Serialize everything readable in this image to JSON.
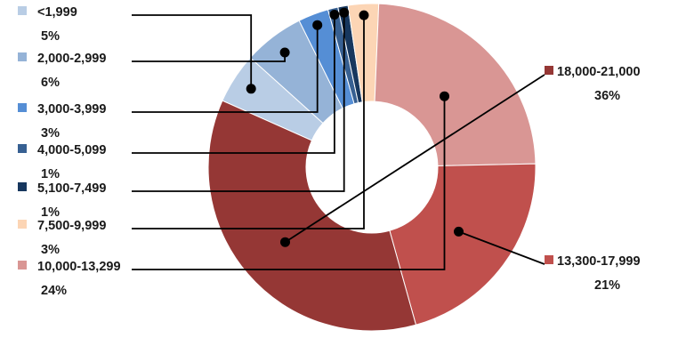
{
  "chart_data": {
    "type": "pie",
    "style": "donut",
    "legend": "left-and-right",
    "series": [
      {
        "name": "<1,999",
        "label": "<1,999",
        "value": 5,
        "value_label": "5%",
        "color": "#B9CDE5"
      },
      {
        "name": "2,000-2,999",
        "label": "2,000-2,999",
        "value": 6,
        "value_label": "6%",
        "color": "#95B3D7"
      },
      {
        "name": "3,000-3,999",
        "label": "3,000-3,999",
        "value": 3,
        "value_label": "3%",
        "color": "#558ED5"
      },
      {
        "name": "4,000-5,099",
        "label": "4,000-5,099",
        "value": 1,
        "value_label": "1%",
        "color": "#376092"
      },
      {
        "name": "5,100-7,499",
        "label": "5,100-7,499",
        "value": 1,
        "value_label": "1%",
        "color": "#17375E"
      },
      {
        "name": "7,500-9,999",
        "label": "7,500-9,999",
        "value": 3,
        "value_label": "3%",
        "color": "#FCD5B5"
      },
      {
        "name": "10,000-13,299",
        "label": "10,000-13,299",
        "value": 24,
        "value_label": "24%",
        "color": "#D99694"
      },
      {
        "name": "13,300-17,999",
        "label": "13,300-17,999",
        "value": 21,
        "value_label": "21%",
        "color": "#C0504D"
      },
      {
        "name": "18,000-21,000",
        "label": "18,000-21,000",
        "value": 36,
        "value_label": "36%",
        "color": "#953735"
      }
    ]
  }
}
